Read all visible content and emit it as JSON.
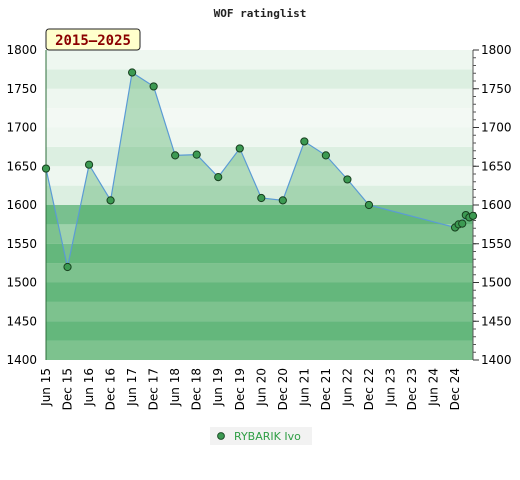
{
  "chart_data": {
    "type": "area",
    "title": "WOF ratinglist",
    "period_label": "2015–2025",
    "ylim": [
      1400,
      1800
    ],
    "y_ticks": [
      1400,
      1450,
      1500,
      1550,
      1600,
      1650,
      1700,
      1750,
      1800
    ],
    "x_tick_labels": [
      "Jun 15",
      "Dec 15",
      "Jun 16",
      "Dec 16",
      "Jun 17",
      "Dec 17",
      "Jun 18",
      "Dec 18",
      "Jun 19",
      "Dec 19",
      "Jun 20",
      "Dec 20",
      "Jun 21",
      "Dec 21",
      "Jun 22",
      "Dec 22",
      "Jun 23",
      "Dec 23",
      "Jun 24",
      "Dec 24"
    ],
    "legend_position": "bottom",
    "colors": {
      "band_dark": "#79c08f",
      "band_mid": "#9ed2ab",
      "band_light": "#dcefe1",
      "band_pale": "#eef7f0",
      "line": "#5b9bd5",
      "marker": "#3c9a52"
    },
    "series": [
      {
        "name": "RYBARIK Ivo",
        "points": [
          [
            "Jun 15",
            1647
          ],
          [
            "Dec 15",
            1520
          ],
          [
            "Jun 16",
            1652
          ],
          [
            "Dec 16",
            1606
          ],
          [
            "Jun 17",
            1771
          ],
          [
            "Dec 17",
            1753
          ],
          [
            "Jun 18",
            1664
          ],
          [
            "Dec 18",
            1665
          ],
          [
            "Jun 19",
            1636
          ],
          [
            "Dec 19",
            1673
          ],
          [
            "Jun 20",
            1609
          ],
          [
            "Dec 20",
            1606
          ],
          [
            "Jun 21",
            1682
          ],
          [
            "Dec 21",
            1664
          ],
          [
            "Jun 22",
            1633
          ],
          [
            "Dec 22",
            1600
          ],
          [
            "Dec 24",
            1571
          ],
          [
            "Jan 25",
            1575
          ],
          [
            "Feb 25",
            1576
          ],
          [
            "Mar 25",
            1587
          ],
          [
            "Apr 25",
            1584
          ],
          [
            "May 25",
            1586
          ]
        ]
      }
    ]
  }
}
